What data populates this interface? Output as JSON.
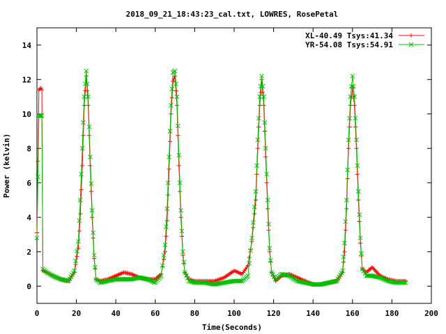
{
  "chart_data": {
    "type": "line",
    "title": "2018_09_21_18:43:23_cal.txt, LOWRES, RosePetal",
    "xlabel": "Time(Seconds)",
    "ylabel": "Power (kelvin)",
    "xlim": [
      0,
      200
    ],
    "ylim": [
      -1,
      15
    ],
    "xticks": [
      0,
      20,
      40,
      60,
      80,
      100,
      120,
      140,
      160,
      180,
      200
    ],
    "yticks": [
      0,
      2,
      4,
      6,
      8,
      10,
      12,
      14
    ],
    "legend_position": "top-right",
    "grid": false,
    "series": [
      {
        "name": "XL-40.49 Tsys:41.34",
        "color": "#ff0000",
        "marker": "plus",
        "x": [
          0,
          1,
          2,
          2.5,
          3,
          5,
          8,
          12,
          16,
          19,
          21,
          22,
          23,
          24,
          25,
          26,
          27,
          28,
          29,
          30,
          32,
          36,
          40,
          44,
          48,
          52,
          56,
          60,
          63,
          65,
          66,
          67,
          68,
          69,
          70,
          71,
          72,
          73,
          74,
          75,
          77,
          80,
          85,
          90,
          95,
          100,
          104,
          107,
          109,
          111,
          112,
          113,
          114,
          115,
          116,
          117,
          118,
          119,
          121,
          124,
          128,
          132,
          136,
          140,
          144,
          148,
          152,
          155,
          156,
          157,
          158,
          159,
          160,
          161,
          162,
          163,
          164,
          165,
          167,
          170,
          174,
          178,
          182,
          187
        ],
        "y": [
          3.1,
          11.4,
          11.5,
          11.4,
          0.9,
          0.8,
          0.6,
          0.4,
          0.3,
          0.8,
          2.2,
          4.2,
          7.0,
          10.5,
          12.2,
          10.5,
          7.0,
          4.0,
          1.6,
          0.4,
          0.3,
          0.4,
          0.6,
          0.8,
          0.7,
          0.5,
          0.4,
          0.4,
          0.7,
          2.0,
          3.8,
          6.8,
          10.0,
          11.9,
          12.2,
          10.5,
          7.0,
          4.0,
          1.8,
          0.8,
          0.4,
          0.3,
          0.3,
          0.3,
          0.5,
          0.9,
          0.7,
          1.2,
          2.6,
          5.0,
          8.0,
          10.5,
          12.0,
          10.5,
          7.5,
          4.5,
          2.0,
          0.8,
          0.3,
          0.6,
          0.7,
          0.5,
          0.3,
          0.1,
          0.1,
          0.2,
          0.3,
          0.8,
          2.0,
          4.5,
          8.0,
          10.5,
          11.5,
          10.5,
          8.0,
          5.0,
          2.5,
          1.0,
          0.8,
          1.1,
          0.6,
          0.4,
          0.3,
          0.3
        ]
      },
      {
        "name": "YR-54.08 Tsys:54.91",
        "color": "#00c000",
        "marker": "cross",
        "x": [
          0,
          1,
          2,
          2.5,
          3,
          5,
          8,
          12,
          16,
          19,
          21,
          22,
          23,
          24,
          25,
          26,
          27,
          28,
          29,
          30,
          32,
          36,
          40,
          44,
          48,
          52,
          56,
          60,
          63,
          65,
          66,
          67,
          68,
          69,
          70,
          71,
          72,
          73,
          74,
          75,
          77,
          80,
          85,
          90,
          95,
          100,
          104,
          107,
          109,
          111,
          112,
          113,
          114,
          115,
          116,
          117,
          118,
          119,
          121,
          124,
          128,
          132,
          136,
          140,
          144,
          148,
          152,
          155,
          156,
          157,
          158,
          159,
          160,
          161,
          162,
          163,
          164,
          165,
          167,
          170,
          174,
          178,
          182,
          187
        ],
        "y": [
          2.8,
          9.9,
          9.9,
          9.9,
          1.0,
          0.8,
          0.6,
          0.4,
          0.3,
          0.9,
          2.6,
          5.0,
          8.0,
          11.0,
          12.5,
          11.0,
          7.5,
          4.4,
          1.8,
          0.4,
          0.2,
          0.3,
          0.4,
          0.4,
          0.4,
          0.5,
          0.4,
          0.2,
          0.6,
          2.4,
          4.5,
          7.5,
          10.5,
          12.4,
          12.5,
          11.0,
          7.6,
          4.4,
          2.0,
          0.8,
          0.3,
          0.2,
          0.2,
          0.1,
          0.2,
          0.3,
          0.3,
          0.6,
          2.8,
          5.5,
          8.5,
          11.0,
          12.2,
          11.0,
          8.0,
          5.0,
          2.2,
          0.8,
          0.4,
          0.7,
          0.6,
          0.3,
          0.2,
          0.1,
          0.1,
          0.2,
          0.3,
          0.9,
          2.5,
          5.0,
          8.5,
          11.0,
          12.2,
          11.0,
          8.5,
          5.5,
          2.8,
          1.0,
          0.6,
          0.6,
          0.5,
          0.3,
          0.2,
          0.2
        ]
      }
    ]
  }
}
